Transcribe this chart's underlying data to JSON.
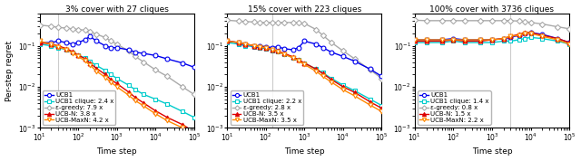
{
  "titles": [
    "3% cover with 27 cliques",
    "15% cover with 223 cliques",
    "100% cover with 3736 cliques"
  ],
  "xlabel": "Time step",
  "ylabel": "Per-step regret",
  "xlim": [
    10,
    100000
  ],
  "ylim": [
    0.001,
    0.6
  ],
  "legends": [
    [
      "UCB1",
      "UCB1 clique: 2.4 x",
      "ε-greedy: 7.9 x",
      "UCB-N: 3.8 x",
      "UCB-MaxN: 4.2 x"
    ],
    [
      "UCB1",
      "UCB1 clique: 2.2 x",
      "ε-greedy: 2.8 x",
      "UCB-N: 3.5 x",
      "UCB-MaxN: 3.5 x"
    ],
    [
      "UCB1",
      "UCB1 clique: 1.4 x",
      "ε-greedy: 0.8 x",
      "UCB-N: 1.5 x",
      "UCB-MaxN: 2.2 x"
    ]
  ],
  "colors": {
    "UCB1": "#0000EE",
    "UCB1_clique": "#00CCCC",
    "eps_greedy": "#AAAAAA",
    "UCB_N": "#DD0000",
    "UCB_MaxN": "#FF8800"
  },
  "vertical_lines": [
    30,
    150,
    3000
  ],
  "panel1": {
    "UCB1": {
      "x": [
        10,
        20,
        30,
        50,
        70,
        100,
        150,
        200,
        300,
        500,
        700,
        1000,
        2000,
        3000,
        5000,
        10000,
        20000,
        50000,
        100000
      ],
      "y": [
        0.12,
        0.12,
        0.13,
        0.12,
        0.11,
        0.12,
        0.14,
        0.17,
        0.13,
        0.1,
        0.09,
        0.09,
        0.08,
        0.07,
        0.065,
        0.058,
        0.048,
        0.038,
        0.03
      ]
    },
    "UCB1_clique": {
      "x": [
        10,
        20,
        30,
        50,
        70,
        100,
        150,
        200,
        300,
        500,
        700,
        1000,
        2000,
        3000,
        5000,
        10000,
        20000,
        50000,
        100000
      ],
      "y": [
        0.11,
        0.1,
        0.09,
        0.08,
        0.07,
        0.06,
        0.05,
        0.042,
        0.033,
        0.025,
        0.02,
        0.016,
        0.011,
        0.0085,
        0.0065,
        0.005,
        0.0038,
        0.0025,
        0.0018
      ]
    },
    "eps_greedy": {
      "x": [
        10,
        20,
        30,
        50,
        70,
        100,
        150,
        200,
        300,
        500,
        700,
        1000,
        2000,
        3000,
        5000,
        10000,
        20000,
        50000,
        100000
      ],
      "y": [
        0.32,
        0.3,
        0.28,
        0.27,
        0.26,
        0.25,
        0.24,
        0.22,
        0.19,
        0.16,
        0.13,
        0.11,
        0.075,
        0.055,
        0.04,
        0.026,
        0.018,
        0.01,
        0.0065
      ]
    },
    "UCB_N": {
      "x": [
        10,
        20,
        30,
        50,
        70,
        100,
        150,
        200,
        300,
        500,
        700,
        1000,
        2000,
        3000,
        5000,
        10000,
        20000,
        50000,
        100000
      ],
      "y": [
        0.12,
        0.11,
        0.1,
        0.085,
        0.073,
        0.06,
        0.048,
        0.038,
        0.028,
        0.02,
        0.015,
        0.012,
        0.0075,
        0.0055,
        0.004,
        0.0026,
        0.0018,
        0.0012,
        0.0008
      ]
    },
    "UCB_MaxN": {
      "x": [
        10,
        20,
        30,
        50,
        70,
        100,
        150,
        200,
        300,
        500,
        700,
        1000,
        2000,
        3000,
        5000,
        10000,
        20000,
        50000,
        100000
      ],
      "y": [
        0.13,
        0.11,
        0.095,
        0.08,
        0.067,
        0.055,
        0.043,
        0.034,
        0.024,
        0.017,
        0.013,
        0.01,
        0.0063,
        0.0046,
        0.0034,
        0.0022,
        0.0015,
        0.001,
        0.00075
      ]
    }
  },
  "panel2": {
    "UCB1": {
      "x": [
        10,
        20,
        30,
        50,
        70,
        100,
        150,
        200,
        300,
        500,
        700,
        1000,
        2000,
        3000,
        5000,
        10000,
        20000,
        50000,
        100000
      ],
      "y": [
        0.13,
        0.12,
        0.11,
        0.1,
        0.1,
        0.095,
        0.09,
        0.095,
        0.085,
        0.08,
        0.09,
        0.13,
        0.11,
        0.09,
        0.07,
        0.055,
        0.042,
        0.027,
        0.018
      ]
    },
    "UCB1_clique": {
      "x": [
        10,
        20,
        30,
        50,
        70,
        100,
        150,
        200,
        300,
        500,
        700,
        1000,
        2000,
        3000,
        5000,
        10000,
        20000,
        50000,
        100000
      ],
      "y": [
        0.12,
        0.11,
        0.1,
        0.095,
        0.09,
        0.085,
        0.078,
        0.072,
        0.063,
        0.052,
        0.045,
        0.038,
        0.027,
        0.022,
        0.016,
        0.011,
        0.008,
        0.005,
        0.0035
      ]
    },
    "eps_greedy": {
      "x": [
        10,
        20,
        30,
        50,
        70,
        100,
        150,
        200,
        300,
        500,
        700,
        1000,
        2000,
        3000,
        5000,
        10000,
        20000,
        50000,
        100000
      ],
      "y": [
        0.42,
        0.4,
        0.39,
        0.38,
        0.37,
        0.37,
        0.37,
        0.37,
        0.37,
        0.37,
        0.37,
        0.35,
        0.25,
        0.18,
        0.12,
        0.075,
        0.048,
        0.026,
        0.016
      ]
    },
    "UCB_N": {
      "x": [
        10,
        20,
        30,
        50,
        70,
        100,
        150,
        200,
        300,
        500,
        700,
        1000,
        2000,
        3000,
        5000,
        10000,
        20000,
        50000,
        100000
      ],
      "y": [
        0.13,
        0.12,
        0.11,
        0.1,
        0.095,
        0.09,
        0.082,
        0.075,
        0.065,
        0.054,
        0.046,
        0.038,
        0.027,
        0.021,
        0.015,
        0.01,
        0.0073,
        0.0043,
        0.003
      ]
    },
    "UCB_MaxN": {
      "x": [
        10,
        20,
        30,
        50,
        70,
        100,
        150,
        200,
        300,
        500,
        700,
        1000,
        2000,
        3000,
        5000,
        10000,
        20000,
        50000,
        100000
      ],
      "y": [
        0.13,
        0.12,
        0.11,
        0.1,
        0.095,
        0.088,
        0.08,
        0.072,
        0.062,
        0.051,
        0.043,
        0.035,
        0.024,
        0.018,
        0.013,
        0.0085,
        0.006,
        0.0036,
        0.0025
      ]
    }
  },
  "panel3": {
    "UCB1": {
      "x": [
        10,
        20,
        50,
        100,
        200,
        500,
        1000,
        2000,
        3000,
        5000,
        7000,
        10000,
        20000,
        50000,
        100000
      ],
      "y": [
        0.14,
        0.14,
        0.14,
        0.15,
        0.14,
        0.14,
        0.14,
        0.15,
        0.16,
        0.18,
        0.2,
        0.21,
        0.19,
        0.15,
        0.12
      ]
    },
    "UCB1_clique": {
      "x": [
        10,
        20,
        50,
        100,
        200,
        500,
        1000,
        2000,
        3000,
        5000,
        7000,
        10000,
        20000,
        50000,
        100000
      ],
      "y": [
        0.12,
        0.12,
        0.12,
        0.13,
        0.12,
        0.12,
        0.12,
        0.13,
        0.13,
        0.14,
        0.15,
        0.16,
        0.15,
        0.13,
        0.11
      ]
    },
    "eps_greedy": {
      "x": [
        10,
        20,
        50,
        100,
        200,
        500,
        1000,
        2000,
        3000,
        5000,
        7000,
        10000,
        20000,
        50000,
        100000
      ],
      "y": [
        0.42,
        0.41,
        0.41,
        0.41,
        0.41,
        0.41,
        0.41,
        0.41,
        0.41,
        0.4,
        0.39,
        0.37,
        0.34,
        0.29,
        0.26
      ]
    },
    "UCB_N": {
      "x": [
        10,
        20,
        50,
        100,
        200,
        500,
        1000,
        2000,
        3000,
        5000,
        7000,
        10000,
        20000,
        50000,
        100000
      ],
      "y": [
        0.13,
        0.13,
        0.13,
        0.14,
        0.13,
        0.13,
        0.14,
        0.15,
        0.17,
        0.19,
        0.21,
        0.21,
        0.18,
        0.15,
        0.12
      ]
    },
    "UCB_MaxN": {
      "x": [
        10,
        20,
        50,
        100,
        200,
        500,
        1000,
        2000,
        3000,
        5000,
        7000,
        10000,
        20000,
        50000,
        100000
      ],
      "y": [
        0.14,
        0.14,
        0.14,
        0.14,
        0.14,
        0.14,
        0.14,
        0.15,
        0.17,
        0.18,
        0.2,
        0.2,
        0.17,
        0.14,
        0.11
      ]
    }
  }
}
